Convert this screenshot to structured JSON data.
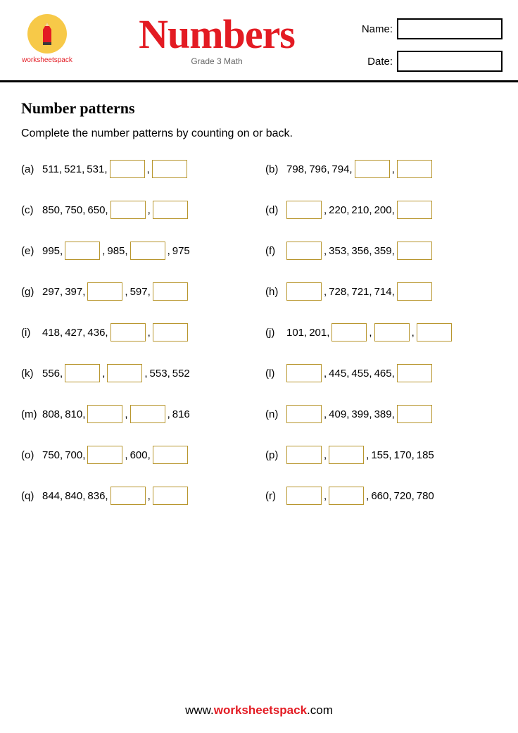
{
  "header": {
    "logo_text": "worksheetspack",
    "title": "Numbers",
    "subtitle": "Grade 3 Math",
    "name_label": "Name:",
    "date_label": "Date:"
  },
  "section": {
    "title": "Number patterns",
    "instructions": "Complete the number patterns by counting on or back."
  },
  "problems": [
    {
      "label": "(a)",
      "seq": [
        "511,",
        "521,",
        "531,",
        "[]",
        ",",
        "[]"
      ]
    },
    {
      "label": "(b)",
      "seq": [
        "798,",
        "796,",
        "794,",
        "[]",
        ",",
        "[]"
      ]
    },
    {
      "label": "(c)",
      "seq": [
        "850,",
        "750,",
        "650,",
        "[]",
        ",",
        "[]"
      ]
    },
    {
      "label": "(d)",
      "seq": [
        "[]",
        ",",
        "220,",
        "210,",
        "200,",
        "[]"
      ]
    },
    {
      "label": "(e)",
      "seq": [
        "995,",
        "[]",
        ",",
        "985,",
        "[]",
        ",",
        "975"
      ]
    },
    {
      "label": "(f)",
      "seq": [
        "[]",
        ",",
        "353,",
        "356,",
        "359,",
        "[]"
      ]
    },
    {
      "label": "(g)",
      "seq": [
        "297,",
        "397,",
        "[]",
        ",",
        "597,",
        "[]"
      ]
    },
    {
      "label": "(h)",
      "seq": [
        "[]",
        ",",
        "728,",
        "721,",
        "714,",
        "[]"
      ]
    },
    {
      "label": "(i)",
      "seq": [
        "418,",
        "427,",
        "436,",
        "[]",
        ",",
        "[]"
      ]
    },
    {
      "label": "(j)",
      "seq": [
        "101,",
        "201,",
        "[]",
        ",",
        "[]",
        ",",
        "[]"
      ]
    },
    {
      "label": "(k)",
      "seq": [
        "556,",
        "[]",
        ",",
        "[]",
        ",",
        "553,",
        "552"
      ]
    },
    {
      "label": "(l)",
      "seq": [
        "[]",
        ",",
        "445,",
        "455,",
        "465,",
        "[]"
      ]
    },
    {
      "label": "(m)",
      "seq": [
        "808,",
        "810,",
        "[]",
        ",",
        "[]",
        ",",
        "816"
      ]
    },
    {
      "label": "(n)",
      "seq": [
        "[]",
        ",",
        "409,",
        "399,",
        "389,",
        "[]"
      ]
    },
    {
      "label": "(o)",
      "seq": [
        "750,",
        "700,",
        "[]",
        ",",
        "600,",
        "[]"
      ]
    },
    {
      "label": "(p)",
      "seq": [
        "[]",
        ",",
        "[]",
        ",",
        "155,",
        "170,",
        "185"
      ]
    },
    {
      "label": "(q)",
      "seq": [
        "844,",
        "840,",
        "836,",
        "[]",
        ",",
        "[]"
      ]
    },
    {
      "label": "(r)",
      "seq": [
        "[]",
        ",",
        "[]",
        ",",
        "660,",
        "720,",
        "780"
      ]
    }
  ],
  "footer": {
    "prefix": "www.",
    "brand": "worksheetspack",
    "suffix": ".com"
  },
  "colors": {
    "accent": "#e31b23",
    "blank_border": "#b8962e",
    "logo_bg": "#f7c948"
  }
}
